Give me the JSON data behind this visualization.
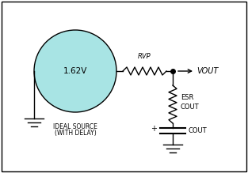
{
  "bg_color": "#ffffff",
  "border_color": "#000000",
  "circle_fill": "#a8e4e4",
  "circle_label": "1.62V",
  "source_label_line1": "IDEAL SOURCE",
  "source_label_line2": "(WITH DELAY)",
  "rvp_label": "RVP",
  "esr_label": "ESR",
  "cout_esr_label": "COUT",
  "cout_cap_label": "COUT",
  "vout_label": "VOUT",
  "line_color": "#000000",
  "fig_width": 3.13,
  "fig_height": 2.19,
  "dpi": 100
}
